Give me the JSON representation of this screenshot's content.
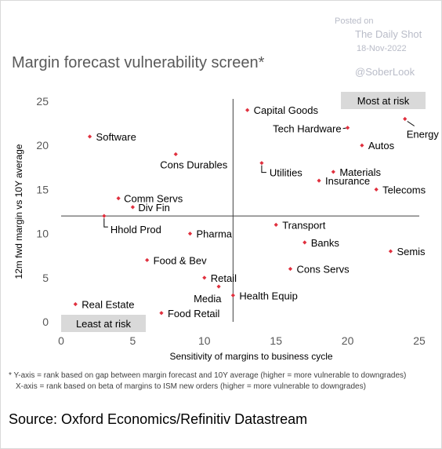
{
  "watermark": {
    "posted": "Posted on",
    "source": "The Daily Shot",
    "date": "18-Nov-2022",
    "handle": "@SoberLook"
  },
  "footnotes": [
    "* Y-axis = rank based on gap between margin forecast and 10Y average (higher = more vulnerable to downgrades)",
    "X-axis = rank based on beta of margins to ISM new orders (higher = more vulnerable to downgrades)"
  ],
  "source": "Source: Oxford Economics/Refinitiv Datastream",
  "chart_data": {
    "type": "scatter",
    "title": "Margin forecast vulnerability screen*",
    "xlabel": "Sensitivity of margins to business cycle",
    "ylabel": "12m fwd margin vs 10Y average",
    "xlim": [
      0,
      25
    ],
    "ylim": [
      0,
      25
    ],
    "xticks": [
      0,
      5,
      10,
      15,
      20,
      25
    ],
    "yticks": [
      0,
      5,
      10,
      15,
      20,
      25
    ],
    "grid": false,
    "quadrant_lines": {
      "x": 12,
      "y": 12
    },
    "boxes": [
      {
        "label": "Most at risk",
        "position": "top-right"
      },
      {
        "label": "Least at risk",
        "position": "bottom-left"
      }
    ],
    "marker_color": "#e0303e",
    "points": [
      {
        "label": "Capital Goods",
        "x": 13,
        "y": 24
      },
      {
        "label": "Energy",
        "x": 24,
        "y": 23
      },
      {
        "label": "Tech Hardware",
        "x": 20,
        "y": 22
      },
      {
        "label": "Software",
        "x": 2,
        "y": 21
      },
      {
        "label": "Autos",
        "x": 21,
        "y": 20
      },
      {
        "label": "Cons Durables",
        "x": 8,
        "y": 19
      },
      {
        "label": "Utilities",
        "x": 14,
        "y": 18
      },
      {
        "label": "Materials",
        "x": 19,
        "y": 17
      },
      {
        "label": "Insurance",
        "x": 18,
        "y": 16
      },
      {
        "label": "Telecoms",
        "x": 22,
        "y": 15
      },
      {
        "label": "Comm Servs",
        "x": 4,
        "y": 14
      },
      {
        "label": "Div Fin",
        "x": 5,
        "y": 13
      },
      {
        "label": "Hhold Prod",
        "x": 3,
        "y": 12
      },
      {
        "label": "Transport",
        "x": 15,
        "y": 11
      },
      {
        "label": "Pharma",
        "x": 9,
        "y": 10
      },
      {
        "label": "Banks",
        "x": 17,
        "y": 9
      },
      {
        "label": "Semis",
        "x": 23,
        "y": 8
      },
      {
        "label": "Food & Bev",
        "x": 6,
        "y": 7
      },
      {
        "label": "Cons Servs",
        "x": 16,
        "y": 6
      },
      {
        "label": "Retail",
        "x": 10,
        "y": 5
      },
      {
        "label": "Media",
        "x": 11,
        "y": 4
      },
      {
        "label": "Health Equip",
        "x": 12,
        "y": 3
      },
      {
        "label": "Real Estate",
        "x": 1,
        "y": 2
      },
      {
        "label": "Food Retail",
        "x": 7,
        "y": 1
      }
    ]
  }
}
